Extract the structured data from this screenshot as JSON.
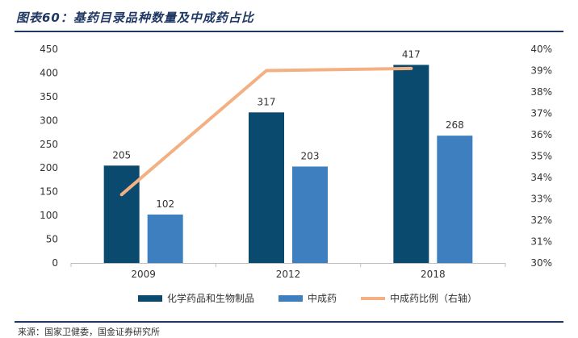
{
  "header": {
    "title": "图表60：基药目录品种数量及中成药占比"
  },
  "footer": {
    "source": "来源：国家卫健委，国金证券研究所"
  },
  "colors": {
    "title": "#1f3864",
    "rule": "#1f3864"
  },
  "chart_data": {
    "type": "bar",
    "categories": [
      "2009",
      "2012",
      "2018"
    ],
    "series": [
      {
        "name": "化学药品和生物制品",
        "type": "bar",
        "axis": "left",
        "values": [
          205,
          317,
          417
        ],
        "color": "#0b4a6f"
      },
      {
        "name": "中成药",
        "type": "bar",
        "axis": "left",
        "values": [
          102,
          203,
          268
        ],
        "color": "#3e7fbf"
      },
      {
        "name": "中成药比例（右轴）",
        "type": "line",
        "axis": "right",
        "values": [
          0.332,
          0.39,
          0.391
        ],
        "color": "#f3b183"
      }
    ],
    "y_left": {
      "range": [
        0,
        450
      ],
      "ticks": [
        "0",
        "50",
        "100",
        "150",
        "200",
        "250",
        "300",
        "350",
        "400",
        "450"
      ]
    },
    "y_right": {
      "range": [
        0.3,
        0.4
      ],
      "ticks": [
        "30%",
        "31%",
        "32%",
        "33%",
        "34%",
        "35%",
        "36%",
        "37%",
        "38%",
        "39%",
        "40%"
      ]
    },
    "data_labels": true,
    "grid": false,
    "legend_position": "bottom"
  }
}
